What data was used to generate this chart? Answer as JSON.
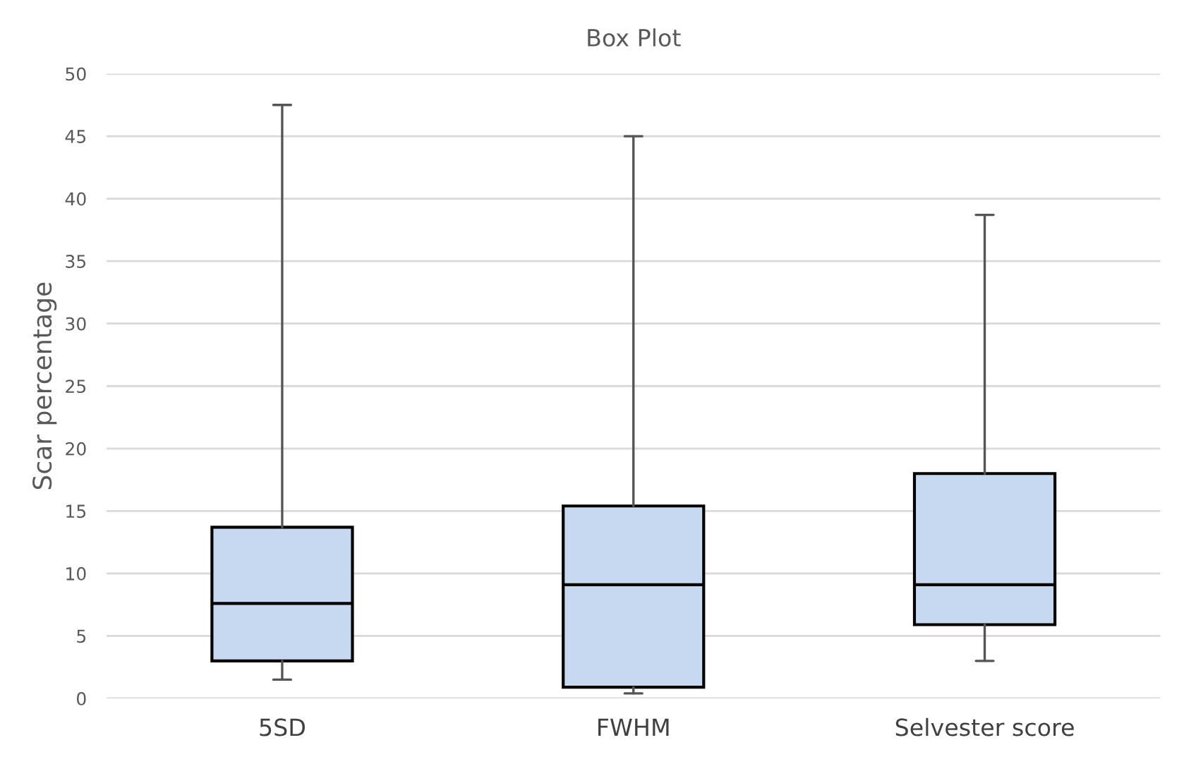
{
  "chart_data": {
    "type": "box",
    "title": "Box Plot",
    "ylabel": "Scar percentage",
    "categories": [
      "5SD",
      "FWHM",
      "Selvester score"
    ],
    "boxes": [
      {
        "low": 1.5,
        "q1": 3.0,
        "median": 7.6,
        "q3": 13.7,
        "high": 47.5
      },
      {
        "low": 0.4,
        "q1": 0.9,
        "median": 9.1,
        "q3": 15.4,
        "high": 45.0
      },
      {
        "low": 3.0,
        "q1": 5.9,
        "median": 9.1,
        "q3": 18.0,
        "high": 38.7
      }
    ],
    "color": "#c6d9f0",
    "ylim": [
      0,
      50
    ],
    "yticks": [
      0,
      5,
      10,
      15,
      20,
      25,
      30,
      35,
      40,
      45,
      50
    ],
    "grid": "y"
  }
}
